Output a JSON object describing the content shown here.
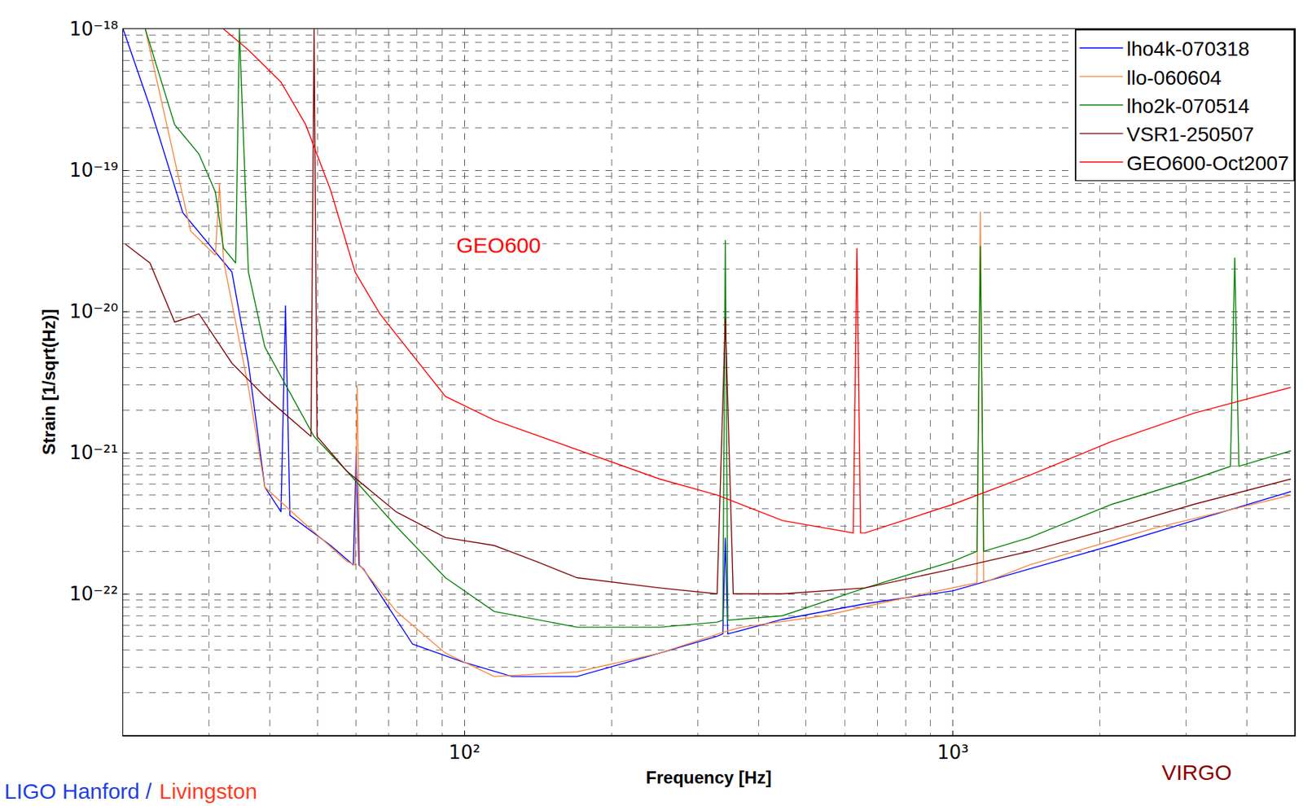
{
  "chart_data": {
    "type": "line",
    "log": true,
    "grid": true,
    "legend": "top right",
    "x_label": "Frequency [Hz]",
    "y_label": "Strain [1/sqrt(Hz)]",
    "xlim": [
      20,
      5000
    ],
    "ylim": [
      1e-23,
      1e-18
    ],
    "xticks": [
      {
        "value": 100,
        "label": "10²"
      },
      {
        "value": 1000,
        "label": "10³"
      }
    ],
    "yticks": [
      {
        "value": 1e-22,
        "label": "10⁻²²"
      },
      {
        "value": 1e-21,
        "label": "10⁻²¹"
      },
      {
        "value": 1e-20,
        "label": "10⁻²⁰"
      },
      {
        "value": 1e-19,
        "label": "10⁻¹⁹"
      },
      {
        "value": 1e-18,
        "label": "10⁻¹⁸"
      }
    ],
    "series": [
      {
        "name": "lho4k-070318",
        "color": "#0000ff",
        "x": [
          20,
          22.7,
          26.5,
          33.4,
          36.1,
          39,
          42.1,
          43,
          43.9,
          53.2,
          59.2,
          60,
          60.8,
          62.1,
          78.3,
          99,
          125,
          170,
          251,
          329,
          338,
          342,
          346,
          448,
          661,
          1000,
          1435,
          2114,
          3112,
          4920
        ],
        "values": [
          1e-18,
          2.8e-19,
          5e-20,
          1.9e-20,
          4.3e-21,
          5.7e-22,
          3.8e-22,
          1.1e-20,
          3.6e-22,
          2.2e-22,
          1.6e-22,
          1e-21,
          1.6e-22,
          1.5e-22,
          4.4e-23,
          3.3e-23,
          2.6e-23,
          2.6e-23,
          3.8e-23,
          5e-23,
          5.2e-23,
          2.5e-22,
          5.2e-23,
          6.6e-23,
          8.5e-23,
          1.05e-22,
          1.5e-22,
          2.2e-22,
          3.3e-22,
          5.3e-22
        ]
      },
      {
        "name": "llo-060604",
        "color": "#f7853f",
        "x": [
          22.2,
          27.5,
          30.9,
          31.5,
          32.1,
          36.1,
          39,
          45.5,
          57.4,
          59.7,
          60.3,
          61,
          72.5,
          91.4,
          115,
          170,
          251,
          342,
          369,
          544,
          802,
          1120,
          1138,
          1156,
          1435,
          2566,
          4920
        ],
        "values": [
          1e-18,
          3.7e-20,
          2.5e-20,
          8e-20,
          2.3e-20,
          2.9e-21,
          5.7e-22,
          3.5e-22,
          1.7e-22,
          1.6e-22,
          3e-21,
          1.6e-22,
          7.5e-23,
          3.8e-23,
          2.6e-23,
          2.8e-23,
          3.8e-23,
          5.4e-23,
          5.8e-23,
          7e-23,
          9.4e-23,
          1.2e-22,
          5.1e-20,
          1.2e-22,
          1.6e-22,
          2.9e-22,
          5e-22
        ]
      },
      {
        "name": "lho2k-070514",
        "color": "#008000",
        "x": [
          22.2,
          25.5,
          28.6,
          30.9,
          32.1,
          34.0,
          34.6,
          36.1,
          39,
          49.2,
          57.4,
          72.5,
          91.4,
          115,
          170,
          251,
          329,
          338,
          342,
          346,
          448,
          661,
          1000,
          1120,
          1138,
          1156,
          1435,
          2114,
          3112,
          3700,
          3776,
          3850,
          4920
        ],
        "values": [
          1e-18,
          2.1e-19,
          1.3e-19,
          7e-20,
          2.8e-20,
          2.2e-20,
          1e-18,
          1.9e-20,
          5.6e-21,
          1.3e-21,
          7.4e-22,
          3e-22,
          1.3e-22,
          7.5e-23,
          5.8e-23,
          5.8e-23,
          6.3e-23,
          6.5e-23,
          3.2e-20,
          6.5e-23,
          7e-23,
          1.1e-22,
          1.7e-22,
          2e-22,
          2.9e-20,
          2e-22,
          2.5e-22,
          4.3e-22,
          6.5e-22,
          8e-22,
          2.4e-20,
          8e-22,
          1.03e-21
        ]
      },
      {
        "name": "VSR1-250507",
        "color": "#800000",
        "x": [
          20.2,
          22.7,
          25.5,
          28.6,
          33.4,
          39,
          48.5,
          49.2,
          49.9,
          57.4,
          72.5,
          91.4,
          115,
          140,
          170,
          251,
          329,
          342,
          355,
          448,
          661,
          1000,
          1435,
          2114,
          3112,
          4920
        ],
        "values": [
          3e-20,
          2.2e-20,
          8.4e-21,
          9.6e-21,
          4.3e-21,
          2.5e-21,
          1.3e-21,
          1e-18,
          1.3e-21,
          7.4e-22,
          3.8e-22,
          2.5e-22,
          2.2e-22,
          1.7e-22,
          1.3e-22,
          1.1e-22,
          1e-22,
          9e-21,
          1e-22,
          1e-22,
          1.1e-22,
          1.5e-22,
          2e-22,
          2.9e-22,
          4.3e-22,
          6.5e-22
        ]
      },
      {
        "name": "GEO600-Oct2007",
        "color": "#ff0000",
        "x": [
          32.1,
          36.1,
          42.1,
          47.3,
          53.2,
          59.7,
          67.1,
          78.3,
          91.4,
          115,
          170,
          251,
          329,
          448,
          625,
          636,
          647,
          661,
          1000,
          1435,
          2114,
          3112,
          4920
        ],
        "values": [
          1e-18,
          7.1e-19,
          4.2e-19,
          2.1e-19,
          7.2e-20,
          1.9e-20,
          9.6e-21,
          4.9e-21,
          2.5e-21,
          1.7e-21,
          1.05e-21,
          6.5e-22,
          5e-22,
          3.3e-22,
          2.7e-22,
          2.8e-20,
          2.7e-22,
          2.7e-22,
          4.3e-22,
          6.9e-22,
          1.2e-21,
          1.9e-21,
          2.9e-21
        ]
      }
    ],
    "annotations": [
      {
        "text": "GEO600",
        "color": "#ff0000"
      },
      {
        "text": "VIRGO",
        "color": "#8b0000"
      },
      {
        "text": "LIGO Hanford /",
        "color": "#1f3fe0"
      },
      {
        "text": "Livingston",
        "color": "#ff3b1f"
      }
    ]
  }
}
